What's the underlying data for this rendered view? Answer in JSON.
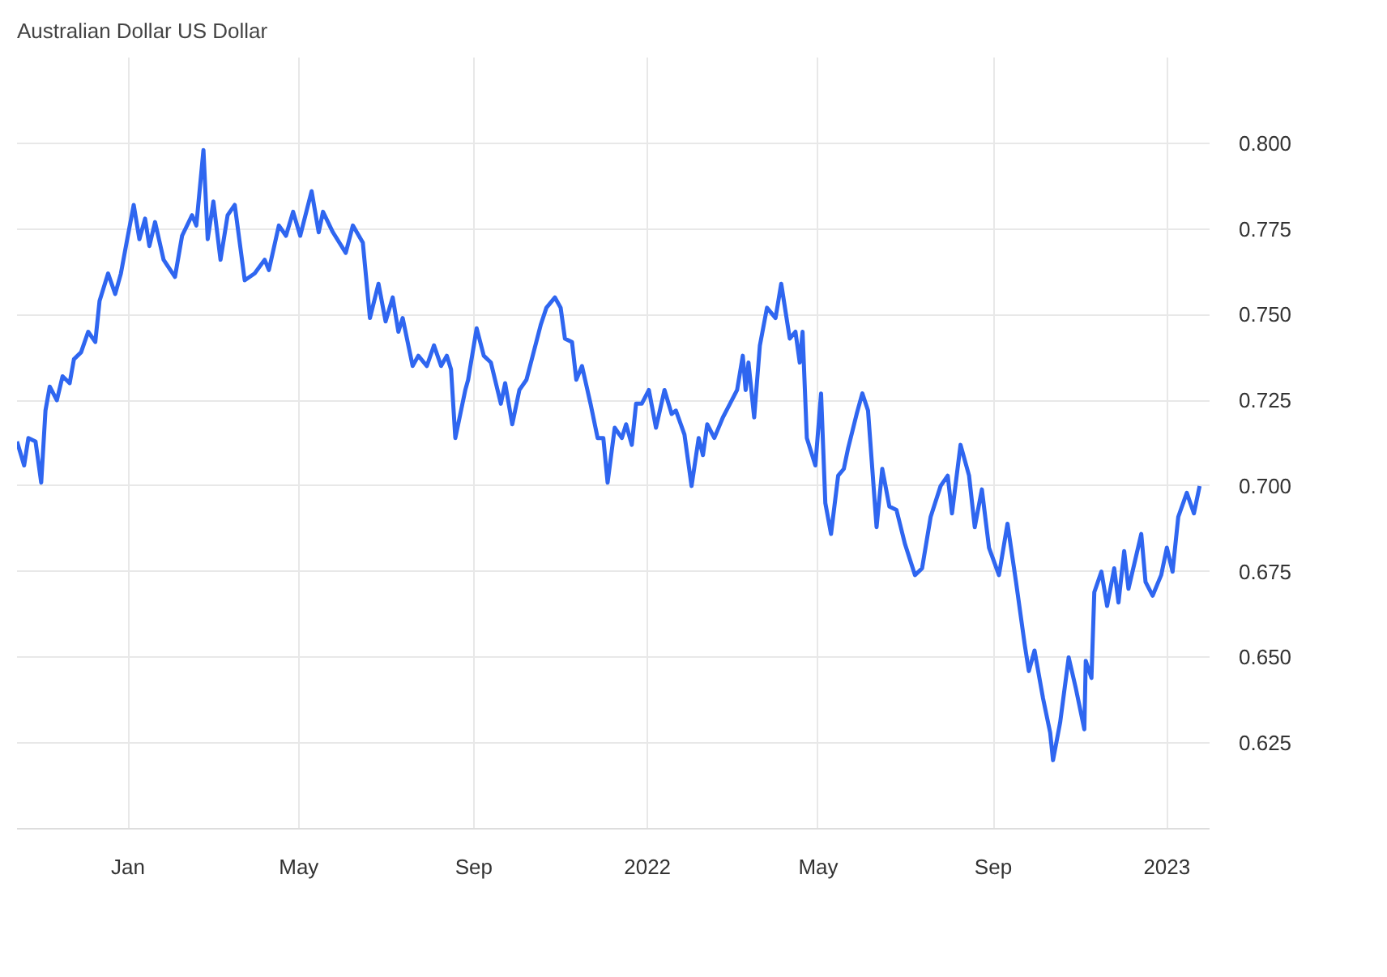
{
  "chart_data": {
    "type": "line",
    "title": "Australian Dollar US Dollar",
    "x": [
      "2020-10-15",
      "2020-10-20",
      "2020-10-23",
      "2020-10-28",
      "2020-11-01",
      "2020-11-04",
      "2020-11-07",
      "2020-11-12",
      "2020-11-16",
      "2020-11-21",
      "2020-11-24",
      "2020-11-29",
      "2020-12-04",
      "2020-12-09",
      "2020-12-12",
      "2020-12-18",
      "2020-12-23",
      "2020-12-27",
      "2020-12-31",
      "2021-01-05",
      "2021-01-09",
      "2021-01-13",
      "2021-01-16",
      "2021-01-20",
      "2021-01-26",
      "2021-02-03",
      "2021-02-08",
      "2021-02-15",
      "2021-02-18",
      "2021-02-23",
      "2021-02-26",
      "2021-03-02",
      "2021-03-07",
      "2021-03-12",
      "2021-03-17",
      "2021-03-24",
      "2021-03-31",
      "2021-04-07",
      "2021-04-10",
      "2021-04-17",
      "2021-04-22",
      "2021-04-27",
      "2021-05-02",
      "2021-05-10",
      "2021-05-15",
      "2021-05-18",
      "2021-05-25",
      "2021-06-03",
      "2021-06-08",
      "2021-06-15",
      "2021-06-20",
      "2021-06-26",
      "2021-07-01",
      "2021-07-06",
      "2021-07-10",
      "2021-07-13",
      "2021-07-20",
      "2021-07-24",
      "2021-07-30",
      "2021-08-04",
      "2021-08-09",
      "2021-08-13",
      "2021-08-16",
      "2021-08-19",
      "2021-08-26",
      "2021-08-28",
      "2021-09-03",
      "2021-09-08",
      "2021-09-13",
      "2021-09-20",
      "2021-09-23",
      "2021-09-28",
      "2021-10-03",
      "2021-10-08",
      "2021-10-13",
      "2021-10-18",
      "2021-10-22",
      "2021-10-28",
      "2021-11-01",
      "2021-11-04",
      "2021-11-09",
      "2021-11-12",
      "2021-11-16",
      "2021-11-22",
      "2021-11-27",
      "2021-12-01",
      "2021-12-04",
      "2021-12-09",
      "2021-12-14",
      "2021-12-17",
      "2021-12-21",
      "2021-12-24",
      "2021-12-28",
      "2022-01-02",
      "2022-01-07",
      "2022-01-13",
      "2022-01-18",
      "2022-01-21",
      "2022-01-27",
      "2022-02-01",
      "2022-02-06",
      "2022-02-09",
      "2022-02-12",
      "2022-02-17",
      "2022-02-23",
      "2022-02-28",
      "2022-03-05",
      "2022-03-09",
      "2022-03-11",
      "2022-03-13",
      "2022-03-17",
      "2022-03-21",
      "2022-03-26",
      "2022-04-01",
      "2022-04-05",
      "2022-04-11",
      "2022-04-15",
      "2022-04-18",
      "2022-04-20",
      "2022-04-23",
      "2022-04-29",
      "2022-05-03",
      "2022-05-06",
      "2022-05-10",
      "2022-05-15",
      "2022-05-19",
      "2022-05-22",
      "2022-05-28",
      "2022-06-01",
      "2022-06-05",
      "2022-06-11",
      "2022-06-15",
      "2022-06-20",
      "2022-06-25",
      "2022-07-01",
      "2022-07-08",
      "2022-07-13",
      "2022-07-19",
      "2022-07-26",
      "2022-07-31",
      "2022-08-03",
      "2022-08-09",
      "2022-08-15",
      "2022-08-19",
      "2022-08-24",
      "2022-08-29",
      "2022-09-05",
      "2022-09-11",
      "2022-09-17",
      "2022-09-23",
      "2022-09-26",
      "2022-09-30",
      "2022-10-06",
      "2022-10-11",
      "2022-10-13",
      "2022-10-18",
      "2022-10-24",
      "2022-10-29",
      "2022-11-04",
      "2022-11-05",
      "2022-11-09",
      "2022-11-11",
      "2022-11-16",
      "2022-11-20",
      "2022-11-25",
      "2022-11-28",
      "2022-12-02",
      "2022-12-05",
      "2022-12-14",
      "2022-12-17",
      "2022-12-22",
      "2022-12-28",
      "2023-01-01",
      "2023-01-05",
      "2023-01-09",
      "2023-01-15",
      "2023-01-20",
      "2023-01-24"
    ],
    "series": [
      {
        "color": "#2f66f0",
        "values": [
          0.713,
          0.706,
          0.714,
          0.713,
          0.701,
          0.722,
          0.729,
          0.725,
          0.732,
          0.73,
          0.737,
          0.739,
          0.745,
          0.742,
          0.754,
          0.762,
          0.756,
          0.762,
          0.771,
          0.782,
          0.772,
          0.778,
          0.77,
          0.777,
          0.766,
          0.761,
          0.773,
          0.779,
          0.776,
          0.798,
          0.772,
          0.783,
          0.766,
          0.779,
          0.782,
          0.76,
          0.762,
          0.766,
          0.763,
          0.776,
          0.773,
          0.78,
          0.773,
          0.786,
          0.774,
          0.78,
          0.774,
          0.768,
          0.776,
          0.771,
          0.749,
          0.759,
          0.748,
          0.755,
          0.745,
          0.749,
          0.735,
          0.738,
          0.735,
          0.741,
          0.735,
          0.738,
          0.734,
          0.714,
          0.728,
          0.731,
          0.746,
          0.738,
          0.736,
          0.724,
          0.73,
          0.718,
          0.728,
          0.731,
          0.739,
          0.747,
          0.752,
          0.755,
          0.752,
          0.743,
          0.742,
          0.731,
          0.735,
          0.724,
          0.714,
          0.714,
          0.701,
          0.717,
          0.714,
          0.718,
          0.712,
          0.724,
          0.724,
          0.728,
          0.717,
          0.728,
          0.721,
          0.722,
          0.715,
          0.7,
          0.714,
          0.709,
          0.718,
          0.714,
          0.72,
          0.724,
          0.728,
          0.738,
          0.728,
          0.736,
          0.72,
          0.741,
          0.752,
          0.749,
          0.759,
          0.743,
          0.745,
          0.736,
          0.745,
          0.714,
          0.706,
          0.727,
          0.695,
          0.686,
          0.703,
          0.705,
          0.711,
          0.721,
          0.727,
          0.722,
          0.688,
          0.705,
          0.694,
          0.693,
          0.683,
          0.674,
          0.676,
          0.691,
          0.7,
          0.703,
          0.692,
          0.712,
          0.703,
          0.688,
          0.699,
          0.682,
          0.674,
          0.689,
          0.672,
          0.654,
          0.646,
          0.652,
          0.638,
          0.628,
          0.62,
          0.631,
          0.65,
          0.641,
          0.629,
          0.649,
          0.644,
          0.669,
          0.675,
          0.665,
          0.676,
          0.666,
          0.681,
          0.67,
          0.686,
          0.672,
          0.668,
          0.674,
          0.682,
          0.675,
          0.691,
          0.698,
          0.692,
          0.7
        ]
      }
    ],
    "xlim": [
      "2020-10-15",
      "2023-01-31"
    ],
    "xticks": [
      {
        "value": "2021-01-01",
        "label": "Jan"
      },
      {
        "value": "2021-05-01",
        "label": "May"
      },
      {
        "value": "2021-09-01",
        "label": "Sep"
      },
      {
        "value": "2022-01-01",
        "label": "2022"
      },
      {
        "value": "2022-05-01",
        "label": "May"
      },
      {
        "value": "2022-09-01",
        "label": "Sep"
      },
      {
        "value": "2023-01-01",
        "label": "2023"
      }
    ],
    "ylim": [
      0.6,
      0.825
    ],
    "yticks": [
      {
        "value": 0.625,
        "label": "0.625"
      },
      {
        "value": 0.65,
        "label": "0.650"
      },
      {
        "value": 0.675,
        "label": "0.675"
      },
      {
        "value": 0.7,
        "label": "0.700"
      },
      {
        "value": 0.725,
        "label": "0.725"
      },
      {
        "value": 0.75,
        "label": "0.750"
      },
      {
        "value": 0.775,
        "label": "0.775"
      },
      {
        "value": 0.8,
        "label": "0.800"
      }
    ],
    "grid": true,
    "line_style": "solid"
  }
}
